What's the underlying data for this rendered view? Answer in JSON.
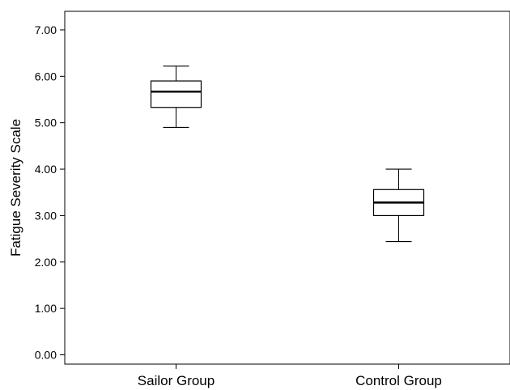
{
  "chart_data": {
    "type": "box",
    "title": "",
    "xlabel": "",
    "ylabel": "Fatigue Severity Scale",
    "ylim": [
      -0.2,
      7.4
    ],
    "yticks": [
      "0.00",
      "1.00",
      "2.00",
      "3.00",
      "4.00",
      "5.00",
      "6.00",
      "7.00"
    ],
    "categories": [
      "Sailor Group",
      "Control Group"
    ],
    "boxes": [
      {
        "category": "Sailor Group",
        "min": 4.9,
        "q1": 5.33,
        "median": 5.67,
        "q3": 5.9,
        "max": 6.22
      },
      {
        "category": "Control Group",
        "min": 2.44,
        "q1": 3.0,
        "median": 3.28,
        "q3": 3.56,
        "max": 4.0
      }
    ],
    "grid": false,
    "colors": {
      "box_fill": "#ffffff",
      "stroke": "#000000"
    }
  }
}
